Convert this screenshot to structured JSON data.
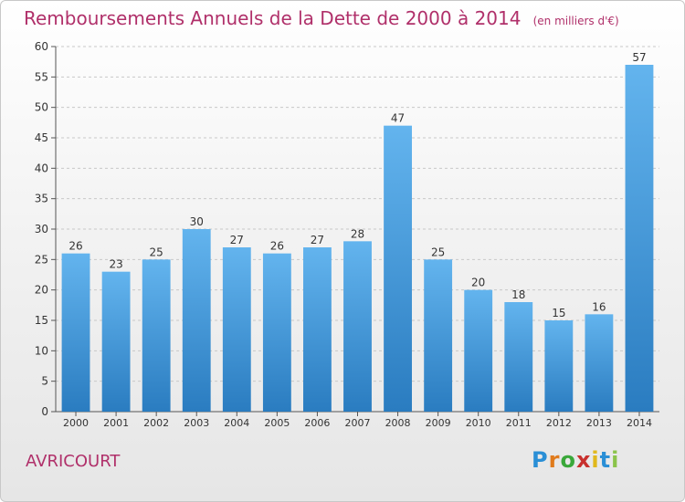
{
  "header": {
    "title": "Remboursements Annuels de la Dette de 2000 à 2014",
    "unit": "(en milliers d'€)"
  },
  "footer": {
    "commune": "AVRICOURT",
    "logo": [
      "P",
      "r",
      "o",
      "x",
      "i",
      "t",
      "i"
    ],
    "logo_colors": [
      "#2a8fd6",
      "#e07b1c",
      "#3aa83a",
      "#c8302d",
      "#e0b81c",
      "#2a8fd6",
      "#8bc34a"
    ]
  },
  "colors": {
    "bar_top": "#63b4ee",
    "bar_bottom": "#2a7cc0",
    "title": "#b0306a",
    "grid": "#c8c8c8"
  },
  "chart_data": {
    "type": "bar",
    "title": "Remboursements Annuels de la Dette de 2000 à 2014",
    "xlabel": "",
    "ylabel": "",
    "categories": [
      "2000",
      "2001",
      "2002",
      "2003",
      "2004",
      "2005",
      "2006",
      "2007",
      "2008",
      "2009",
      "2010",
      "2011",
      "2012",
      "2013",
      "2014"
    ],
    "values": [
      26,
      23,
      25,
      30,
      27,
      26,
      27,
      28,
      47,
      25,
      20,
      18,
      15,
      16,
      57
    ],
    "ylim": [
      0,
      60
    ],
    "yticks": [
      0,
      5,
      10,
      15,
      20,
      25,
      30,
      35,
      40,
      45,
      50,
      55,
      60
    ],
    "grid": true,
    "data_labels": true
  }
}
